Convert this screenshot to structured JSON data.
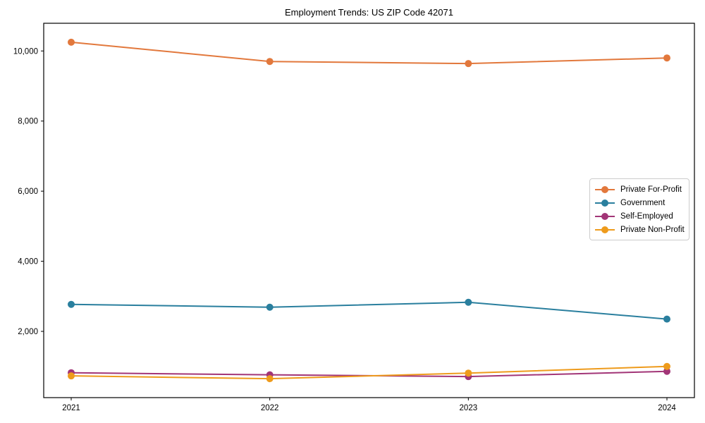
{
  "chart_data": {
    "type": "line",
    "title": "Employment Trends: US ZIP Code 42071",
    "xlabel": "",
    "ylabel": "",
    "categories": [
      "2021",
      "2022",
      "2023",
      "2024"
    ],
    "series": [
      {
        "name": "Private For-Profit",
        "color": "#E2783C",
        "values": [
          10250,
          9700,
          9640,
          9800
        ]
      },
      {
        "name": "Government",
        "color": "#2A7F9E",
        "values": [
          2770,
          2690,
          2830,
          2350
        ]
      },
      {
        "name": "Self-Employed",
        "color": "#A23577",
        "values": [
          820,
          760,
          710,
          860
        ]
      },
      {
        "name": "Private Non-Profit",
        "color": "#EE9B1C",
        "values": [
          730,
          650,
          810,
          1000
        ]
      }
    ],
    "ylim": [
      110,
      10790
    ],
    "yticks": {
      "values": [
        2000,
        4000,
        6000,
        8000,
        10000
      ],
      "labels": [
        "2,000",
        "4,000",
        "6,000",
        "8,000",
        "10,000"
      ]
    },
    "grid": false,
    "legend_position": "center right",
    "marker": "circle",
    "axis_color": "#000000",
    "tick_label_color": "#000000",
    "legend_border_color": "#cccccc"
  }
}
